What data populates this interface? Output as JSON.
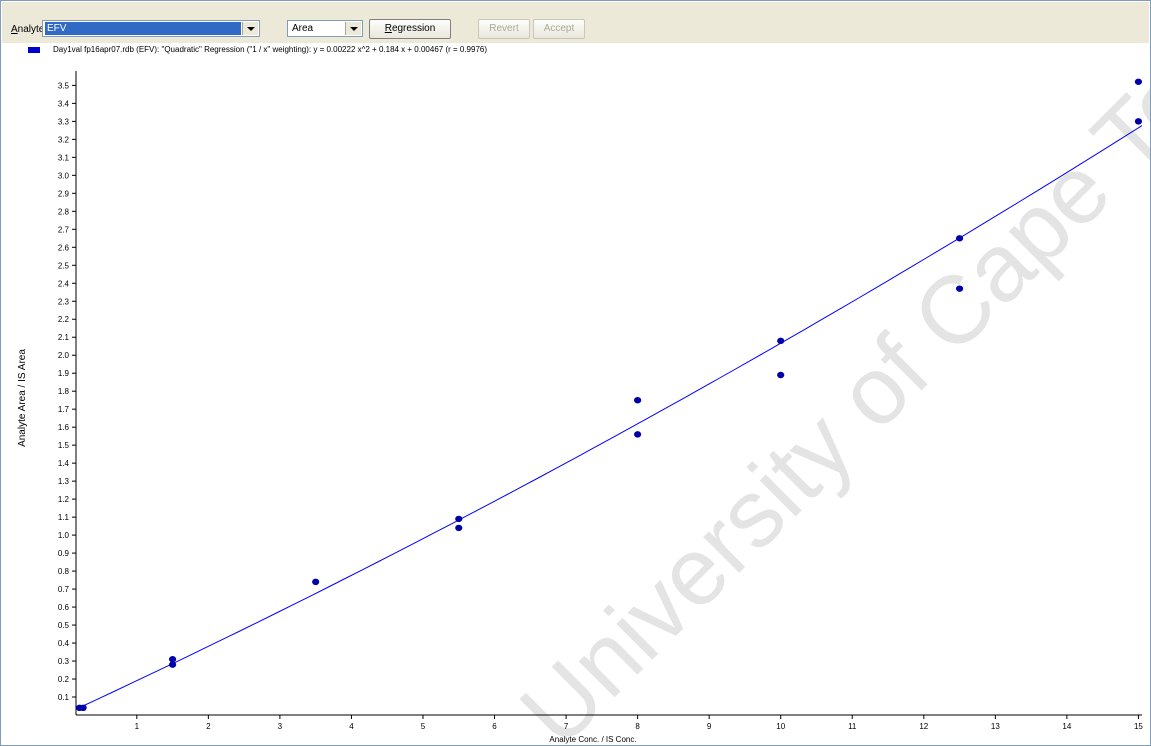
{
  "toolbar": {
    "analyte_label_prefix": "A",
    "analyte_label_rest": "nalyte:",
    "analyte_value": "EFV",
    "measure_value": "Area",
    "regression_mnemonic": "R",
    "regression_rest": "egression",
    "revert_label": "Revert",
    "accept_label": "Accept"
  },
  "legend": {
    "text": "Day1val fp16apr07.rdb (EFV): \"Quadratic\" Regression (\"1 / x\" weighting): y = 0.00222 x^2 + 0.184 x + 0.00467 (r = 0.9976)",
    "color": "#0000cc"
  },
  "watermark": "University of Cape Town",
  "chart_data": {
    "type": "scatter",
    "xlabel": "Analyte Conc. / IS Conc.",
    "ylabel": "Analyte Area / IS Area",
    "xlim": [
      0.15,
      15.05
    ],
    "ylim": [
      0.0,
      3.58
    ],
    "x_ticks": [
      1,
      2,
      3,
      4,
      5,
      6,
      7,
      8,
      9,
      10,
      11,
      12,
      13,
      14,
      15
    ],
    "y_ticks": [
      0.1,
      0.2,
      0.3,
      0.4,
      0.5,
      0.6,
      0.7,
      0.8,
      0.9,
      1.0,
      1.1,
      1.2,
      1.3,
      1.4,
      1.5,
      1.6,
      1.7,
      1.8,
      1.9,
      2.0,
      2.1,
      2.2,
      2.3,
      2.4,
      2.5,
      2.6,
      2.7,
      2.8,
      2.9,
      3.0,
      3.1,
      3.2,
      3.3,
      3.4,
      3.5
    ],
    "points": [
      {
        "x": 0.2,
        "y": 0.04
      },
      {
        "x": 0.25,
        "y": 0.04
      },
      {
        "x": 1.5,
        "y": 0.31
      },
      {
        "x": 1.5,
        "y": 0.28
      },
      {
        "x": 3.5,
        "y": 0.74
      },
      {
        "x": 5.5,
        "y": 1.09
      },
      {
        "x": 5.5,
        "y": 1.04
      },
      {
        "x": 8.0,
        "y": 1.75
      },
      {
        "x": 8.0,
        "y": 1.56
      },
      {
        "x": 10.0,
        "y": 2.08
      },
      {
        "x": 10.0,
        "y": 1.89
      },
      {
        "x": 12.5,
        "y": 2.65
      },
      {
        "x": 12.5,
        "y": 2.37
      },
      {
        "x": 15.0,
        "y": 3.52
      },
      {
        "x": 15.0,
        "y": 3.3
      }
    ],
    "fit": {
      "type": "quadratic",
      "a": 0.00222,
      "b": 0.184,
      "c": 0.00467,
      "x_range": [
        0.2,
        15.05
      ]
    },
    "series_color": "#0000aa",
    "line_color": "#0000ff",
    "grid": false
  }
}
